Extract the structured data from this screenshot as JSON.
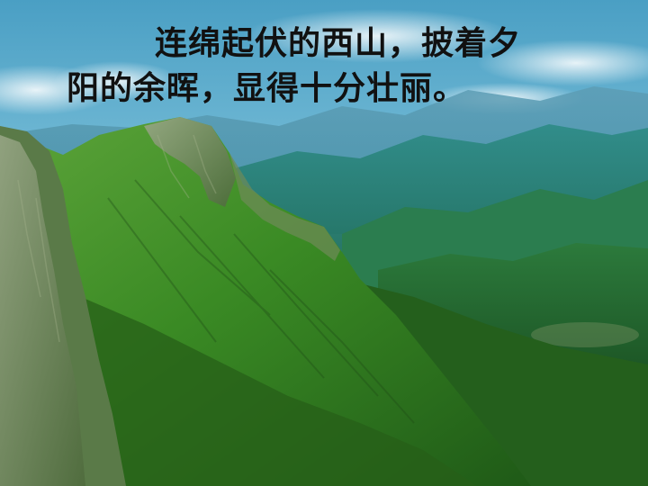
{
  "slide": {
    "caption_line1": "连绵起伏的西山，披着夕",
    "caption_line2": "阳的余晖，显得十分壮丽。"
  },
  "scene": {
    "subject": "green mountain ridge with distant blue ranges",
    "colors": {
      "sky_top": "#4a9fc4",
      "sky_bottom": "#b9dfe8",
      "far_range": "#5d9db5",
      "mid_range": "#2e7d7a",
      "near_slope": "#3f8a2a",
      "shadow_green": "#1d4d17",
      "rock": "#8f9a7a"
    }
  }
}
